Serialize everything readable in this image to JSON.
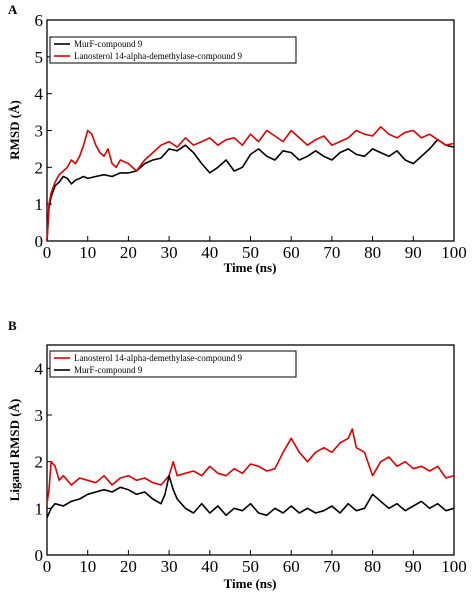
{
  "chart_data": [
    {
      "panel": "A",
      "type": "line",
      "xlabel": "Time (ns)",
      "ylabel": "RMSD (Å)",
      "xlim": [
        0,
        100
      ],
      "ylim": [
        0,
        6
      ],
      "xticks": [
        0,
        10,
        20,
        30,
        40,
        50,
        60,
        70,
        80,
        90,
        100
      ],
      "yticks": [
        0,
        1,
        2,
        3,
        4,
        5,
        6
      ],
      "grid": false,
      "legend": "top-left",
      "series": [
        {
          "name": "MurF-compound 9",
          "color": "#000000",
          "x": [
            0,
            0.5,
            1,
            2,
            3,
            4,
            5,
            6,
            7,
            8,
            9,
            10,
            12,
            14,
            16,
            18,
            20,
            22,
            24,
            26,
            28,
            30,
            32,
            34,
            36,
            38,
            40,
            42,
            44,
            46,
            48,
            50,
            52,
            54,
            56,
            58,
            60,
            62,
            64,
            66,
            68,
            70,
            72,
            74,
            76,
            78,
            80,
            82,
            84,
            86,
            88,
            90,
            92,
            94,
            96,
            98,
            100
          ],
          "y": [
            0,
            0.9,
            1.2,
            1.5,
            1.6,
            1.75,
            1.7,
            1.55,
            1.65,
            1.7,
            1.75,
            1.7,
            1.75,
            1.8,
            1.75,
            1.85,
            1.85,
            1.9,
            2.1,
            2.2,
            2.25,
            2.5,
            2.45,
            2.6,
            2.4,
            2.1,
            1.85,
            2.0,
            2.2,
            1.9,
            2.0,
            2.35,
            2.5,
            2.3,
            2.2,
            2.45,
            2.4,
            2.2,
            2.3,
            2.45,
            2.3,
            2.2,
            2.4,
            2.5,
            2.35,
            2.3,
            2.5,
            2.4,
            2.3,
            2.45,
            2.2,
            2.1,
            2.3,
            2.5,
            2.75,
            2.6,
            2.55
          ]
        },
        {
          "name": "Lanosterol 14-alpha-demethylase-compound 9",
          "color": "#e00000",
          "x": [
            0,
            0.5,
            1,
            2,
            3,
            4,
            5,
            6,
            7,
            8,
            9,
            10,
            11,
            12,
            13,
            14,
            15,
            16,
            17,
            18,
            20,
            22,
            24,
            26,
            28,
            30,
            32,
            34,
            36,
            38,
            40,
            42,
            44,
            46,
            48,
            50,
            52,
            54,
            56,
            58,
            60,
            62,
            64,
            66,
            68,
            70,
            72,
            74,
            76,
            78,
            80,
            82,
            84,
            86,
            88,
            90,
            92,
            94,
            96,
            98,
            100
          ],
          "y": [
            0,
            1.0,
            1.3,
            1.6,
            1.8,
            1.9,
            2.0,
            2.2,
            2.1,
            2.3,
            2.6,
            3.0,
            2.9,
            2.6,
            2.4,
            2.3,
            2.5,
            2.1,
            2.0,
            2.2,
            2.1,
            1.9,
            2.2,
            2.4,
            2.6,
            2.7,
            2.55,
            2.8,
            2.6,
            2.7,
            2.8,
            2.6,
            2.75,
            2.8,
            2.6,
            2.9,
            2.7,
            3.0,
            2.85,
            2.7,
            3.0,
            2.8,
            2.6,
            2.75,
            2.85,
            2.6,
            2.7,
            2.8,
            3.0,
            2.9,
            2.85,
            3.1,
            2.9,
            2.8,
            2.95,
            3.0,
            2.8,
            2.9,
            2.75,
            2.6,
            2.65
          ]
        }
      ]
    },
    {
      "panel": "B",
      "type": "line",
      "xlabel": "Time (ns)",
      "ylabel": "Ligand RMSD (Å)",
      "xlim": [
        0,
        100
      ],
      "ylim": [
        0,
        4.5
      ],
      "xticks": [
        0,
        10,
        20,
        30,
        40,
        50,
        60,
        70,
        80,
        90,
        100
      ],
      "yticks": [
        0,
        1,
        2,
        3,
        4
      ],
      "grid": false,
      "legend": "top-left",
      "series": [
        {
          "name": "Lanosterol 14-alpha-demethylase-compound 9",
          "color": "#e00000",
          "x": [
            0,
            0.5,
            1,
            2,
            3,
            4,
            6,
            8,
            10,
            12,
            14,
            16,
            18,
            20,
            22,
            24,
            26,
            28,
            30,
            31,
            32,
            34,
            36,
            38,
            40,
            42,
            44,
            46,
            48,
            50,
            52,
            54,
            56,
            58,
            60,
            62,
            64,
            66,
            68,
            70,
            72,
            74,
            75,
            76,
            78,
            80,
            82,
            84,
            86,
            88,
            90,
            92,
            94,
            96,
            98,
            100
          ],
          "y": [
            1.1,
            1.4,
            2.0,
            1.9,
            1.6,
            1.7,
            1.5,
            1.65,
            1.6,
            1.55,
            1.7,
            1.5,
            1.65,
            1.7,
            1.6,
            1.65,
            1.55,
            1.5,
            1.7,
            2.0,
            1.7,
            1.75,
            1.8,
            1.7,
            1.9,
            1.75,
            1.7,
            1.85,
            1.75,
            1.95,
            1.9,
            1.8,
            1.85,
            2.2,
            2.5,
            2.2,
            2.0,
            2.2,
            2.3,
            2.2,
            2.4,
            2.5,
            2.7,
            2.3,
            2.2,
            1.7,
            2.0,
            2.1,
            1.9,
            2.0,
            1.85,
            1.9,
            1.8,
            1.9,
            1.65,
            1.7
          ]
        },
        {
          "name": "MurF-compound 9",
          "color": "#000000",
          "x": [
            0,
            1,
            2,
            4,
            6,
            8,
            10,
            12,
            14,
            16,
            18,
            20,
            22,
            24,
            26,
            28,
            29,
            30,
            31,
            32,
            34,
            36,
            38,
            40,
            42,
            44,
            46,
            48,
            50,
            52,
            54,
            56,
            58,
            60,
            62,
            64,
            66,
            68,
            70,
            72,
            74,
            76,
            78,
            80,
            82,
            84,
            86,
            88,
            90,
            92,
            94,
            96,
            98,
            100
          ],
          "y": [
            0.8,
            1.0,
            1.1,
            1.05,
            1.15,
            1.2,
            1.3,
            1.35,
            1.4,
            1.35,
            1.45,
            1.4,
            1.3,
            1.35,
            1.2,
            1.1,
            1.3,
            1.7,
            1.4,
            1.2,
            1.0,
            0.9,
            1.1,
            0.9,
            1.05,
            0.85,
            1.0,
            0.95,
            1.1,
            0.9,
            0.85,
            1.0,
            0.9,
            1.05,
            0.9,
            1.0,
            0.9,
            0.95,
            1.05,
            0.9,
            1.1,
            0.95,
            1.0,
            1.3,
            1.15,
            1.0,
            1.1,
            0.95,
            1.05,
            1.15,
            1.0,
            1.1,
            0.95,
            1.0
          ]
        }
      ]
    }
  ]
}
